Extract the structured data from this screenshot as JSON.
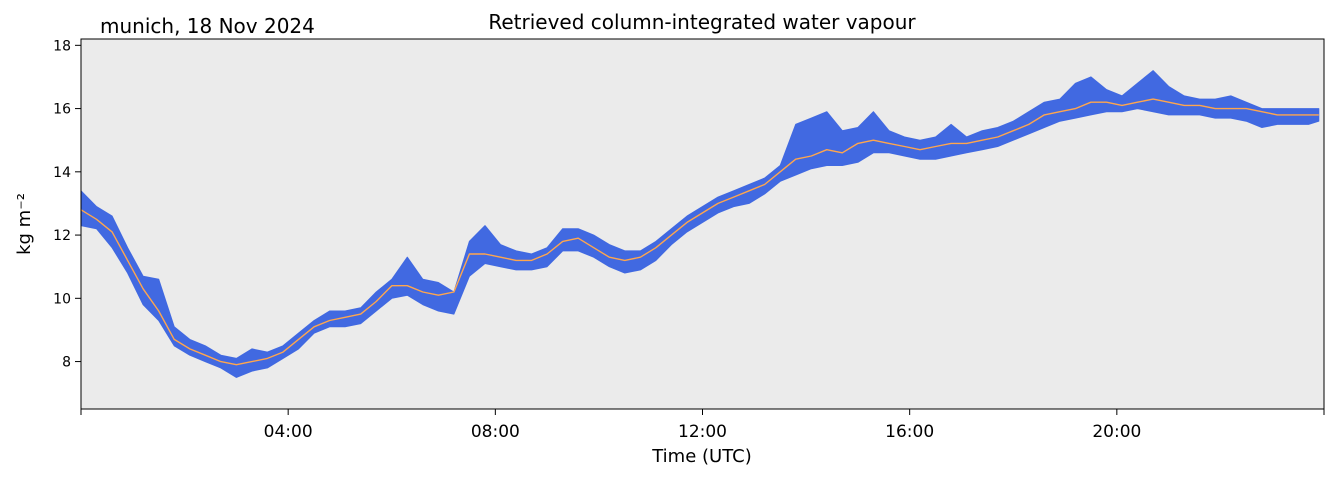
{
  "header": {
    "location_date": "munich, 18 Nov 2024",
    "title": "Retrieved column-integrated water vapour"
  },
  "chart_data": {
    "type": "line",
    "title": "Retrieved column-integrated water vapour",
    "xlabel": "Time (UTC)",
    "ylabel": "kg m⁻²",
    "xlim_hours": [
      0,
      24
    ],
    "ylim": [
      6.5,
      18.2
    ],
    "x_ticks": [
      {
        "hour": 4,
        "label": "04:00"
      },
      {
        "hour": 8,
        "label": "08:00"
      },
      {
        "hour": 12,
        "label": "12:00"
      },
      {
        "hour": 16,
        "label": "16:00"
      },
      {
        "hour": 20,
        "label": "20:00"
      }
    ],
    "y_ticks": [
      8,
      10,
      12,
      14,
      16,
      18
    ],
    "background": "#ebebeb",
    "grid": false,
    "series": [
      {
        "kind": "raw retrieval band",
        "color": "#4169e1",
        "x": [
          0.0,
          0.3,
          0.6,
          0.9,
          1.2,
          1.5,
          1.8,
          2.1,
          2.4,
          2.7,
          3.0,
          3.3,
          3.6,
          3.9,
          4.2,
          4.5,
          4.8,
          5.1,
          5.4,
          5.7,
          6.0,
          6.3,
          6.6,
          6.9,
          7.2,
          7.5,
          7.8,
          8.1,
          8.4,
          8.7,
          9.0,
          9.3,
          9.6,
          9.9,
          10.2,
          10.5,
          10.8,
          11.1,
          11.4,
          11.7,
          12.0,
          12.3,
          12.6,
          12.9,
          13.2,
          13.5,
          13.8,
          14.1,
          14.4,
          14.7,
          15.0,
          15.3,
          15.6,
          15.9,
          16.2,
          16.5,
          16.8,
          17.1,
          17.4,
          17.7,
          18.0,
          18.3,
          18.6,
          18.9,
          19.2,
          19.5,
          19.8,
          20.1,
          20.4,
          20.7,
          21.0,
          21.3,
          21.6,
          21.9,
          22.2,
          22.5,
          22.8,
          23.1,
          23.4,
          23.7,
          23.9
        ],
        "upper": [
          13.4,
          12.9,
          12.6,
          11.6,
          10.7,
          10.6,
          9.1,
          8.7,
          8.5,
          8.2,
          8.1,
          8.4,
          8.3,
          8.5,
          8.9,
          9.3,
          9.6,
          9.6,
          9.7,
          10.2,
          10.6,
          11.3,
          10.6,
          10.5,
          10.2,
          11.8,
          12.3,
          11.7,
          11.5,
          11.4,
          11.6,
          12.2,
          12.2,
          12.0,
          11.7,
          11.5,
          11.5,
          11.8,
          12.2,
          12.6,
          12.9,
          13.2,
          13.4,
          13.6,
          13.8,
          14.2,
          15.5,
          15.7,
          15.9,
          15.3,
          15.4,
          15.9,
          15.3,
          15.1,
          15.0,
          15.1,
          15.5,
          15.1,
          15.3,
          15.4,
          15.6,
          15.9,
          16.2,
          16.3,
          16.8,
          17.0,
          16.6,
          16.4,
          16.8,
          17.2,
          16.7,
          16.4,
          16.3,
          16.3,
          16.4,
          16.2,
          16.0,
          16.0,
          16.0,
          16.0,
          16.0
        ],
        "lower": [
          12.3,
          12.2,
          11.6,
          10.8,
          9.8,
          9.3,
          8.5,
          8.2,
          8.0,
          7.8,
          7.5,
          7.7,
          7.8,
          8.1,
          8.4,
          8.9,
          9.1,
          9.1,
          9.2,
          9.6,
          10.0,
          10.1,
          9.8,
          9.6,
          9.5,
          10.7,
          11.1,
          11.0,
          10.9,
          10.9,
          11.0,
          11.5,
          11.5,
          11.3,
          11.0,
          10.8,
          10.9,
          11.2,
          11.7,
          12.1,
          12.4,
          12.7,
          12.9,
          13.0,
          13.3,
          13.7,
          13.9,
          14.1,
          14.2,
          14.2,
          14.3,
          14.6,
          14.6,
          14.5,
          14.4,
          14.4,
          14.5,
          14.6,
          14.7,
          14.8,
          15.0,
          15.2,
          15.4,
          15.6,
          15.7,
          15.8,
          15.9,
          15.9,
          16.0,
          15.9,
          15.8,
          15.8,
          15.8,
          15.7,
          15.7,
          15.6,
          15.4,
          15.5,
          15.5,
          15.5,
          15.6
        ]
      },
      {
        "kind": "smoothed",
        "color": "#ffa64d",
        "x": [
          0.0,
          0.3,
          0.6,
          0.9,
          1.2,
          1.5,
          1.8,
          2.1,
          2.4,
          2.7,
          3.0,
          3.3,
          3.6,
          3.9,
          4.2,
          4.5,
          4.8,
          5.1,
          5.4,
          5.7,
          6.0,
          6.3,
          6.6,
          6.9,
          7.2,
          7.5,
          7.8,
          8.1,
          8.4,
          8.7,
          9.0,
          9.3,
          9.6,
          9.9,
          10.2,
          10.5,
          10.8,
          11.1,
          11.4,
          11.7,
          12.0,
          12.3,
          12.6,
          12.9,
          13.2,
          13.5,
          13.8,
          14.1,
          14.4,
          14.7,
          15.0,
          15.3,
          15.6,
          15.9,
          16.2,
          16.5,
          16.8,
          17.1,
          17.4,
          17.7,
          18.0,
          18.3,
          18.6,
          18.9,
          19.2,
          19.5,
          19.8,
          20.1,
          20.4,
          20.7,
          21.0,
          21.3,
          21.6,
          21.9,
          22.2,
          22.5,
          22.8,
          23.1,
          23.4,
          23.7,
          23.9
        ],
        "y": [
          12.8,
          12.5,
          12.1,
          11.2,
          10.3,
          9.6,
          8.7,
          8.4,
          8.2,
          8.0,
          7.9,
          8.0,
          8.1,
          8.3,
          8.7,
          9.1,
          9.3,
          9.4,
          9.5,
          9.9,
          10.4,
          10.4,
          10.2,
          10.1,
          10.2,
          11.4,
          11.4,
          11.3,
          11.2,
          11.2,
          11.4,
          11.8,
          11.9,
          11.6,
          11.3,
          11.2,
          11.3,
          11.6,
          12.0,
          12.4,
          12.7,
          13.0,
          13.2,
          13.4,
          13.6,
          14.0,
          14.4,
          14.5,
          14.7,
          14.6,
          14.9,
          15.0,
          14.9,
          14.8,
          14.7,
          14.8,
          14.9,
          14.9,
          15.0,
          15.1,
          15.3,
          15.5,
          15.8,
          15.9,
          16.0,
          16.2,
          16.2,
          16.1,
          16.2,
          16.3,
          16.2,
          16.1,
          16.1,
          16.0,
          16.0,
          16.0,
          15.9,
          15.8,
          15.8,
          15.8,
          15.8
        ]
      }
    ]
  }
}
